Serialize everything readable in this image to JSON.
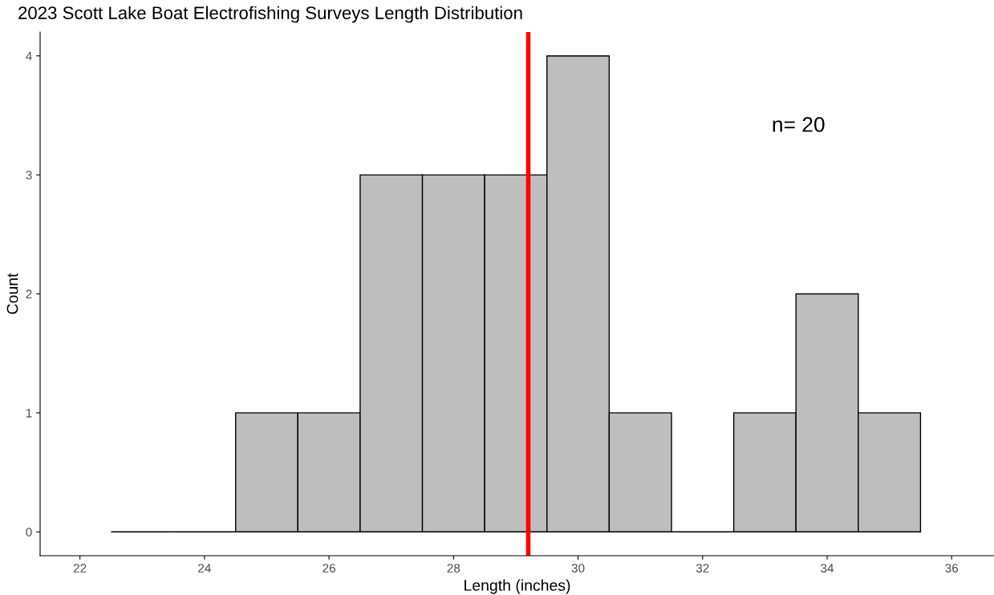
{
  "chart_data": {
    "type": "histogram",
    "title": "2023 Scott Lake Boat Electrofishing Surveys Length Distribution",
    "xlabel": "Length (inches)",
    "ylabel": "Count",
    "bins": [
      22.5,
      23.5,
      24.5,
      25.5,
      26.5,
      27.5,
      28.5,
      29.5,
      30.5,
      31.5,
      32.5,
      33.5,
      34.5,
      35.5
    ],
    "values": [
      0,
      0,
      1,
      1,
      3,
      3,
      3,
      4,
      1,
      0,
      1,
      2,
      1
    ],
    "colors": [
      "#000000",
      "#000000",
      "#bebebe",
      "#bebebe",
      "#bebebe",
      "#bebebe",
      "#bebebe",
      "#bebebe",
      "#bebebe",
      "#000000",
      "#bebebe",
      "#bebebe",
      "#bebebe"
    ],
    "xlim": [
      21.36,
      36.68
    ],
    "xticks": [
      22,
      24,
      26,
      28,
      30,
      32,
      34,
      36
    ],
    "ylim": [
      -0.2,
      4.2
    ],
    "yticks": [
      0,
      1,
      2,
      3,
      4
    ],
    "ref_lines": [
      {
        "axis": "x",
        "value": 29.2,
        "color": "#ff0000"
      }
    ],
    "annotations": [
      "n= 20"
    ],
    "grid": false
  }
}
